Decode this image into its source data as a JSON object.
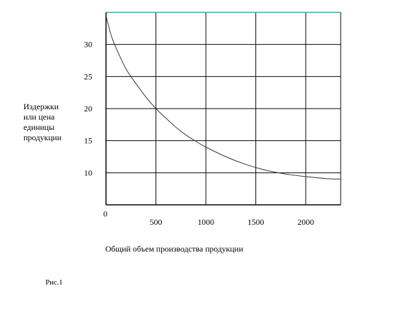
{
  "figure": {
    "caption": "Рис.1"
  },
  "chart_data": {
    "type": "line",
    "title": "",
    "xlabel": "Общий объем производства продукции",
    "ylabel": "Издержки\nили цена\nединицы\nпродукции",
    "x_ticks": [
      "0",
      "500",
      "1000",
      "1500",
      "2000"
    ],
    "y_ticks": [
      "10",
      "15",
      "20",
      "25",
      "30"
    ],
    "xlim": [
      0,
      2350
    ],
    "ylim": [
      5,
      35
    ],
    "grid": true,
    "series": [
      {
        "x": [
          0,
          50,
          100,
          200,
          300,
          400,
          500,
          600,
          700,
          800,
          900,
          1000,
          1200,
          1400,
          1600,
          1800,
          2000,
          2200,
          2350
        ],
        "y": [
          34.5,
          31.5,
          29.5,
          26.2,
          23.9,
          21.8,
          20.0,
          18.5,
          17.1,
          15.9,
          14.9,
          14.0,
          12.5,
          11.3,
          10.4,
          9.8,
          9.4,
          9.1,
          9.0
        ]
      }
    ],
    "colors": {
      "axis": "#000000",
      "grid": "#000000",
      "frame_top": "#4aa3a0",
      "curve": "#333333"
    }
  }
}
